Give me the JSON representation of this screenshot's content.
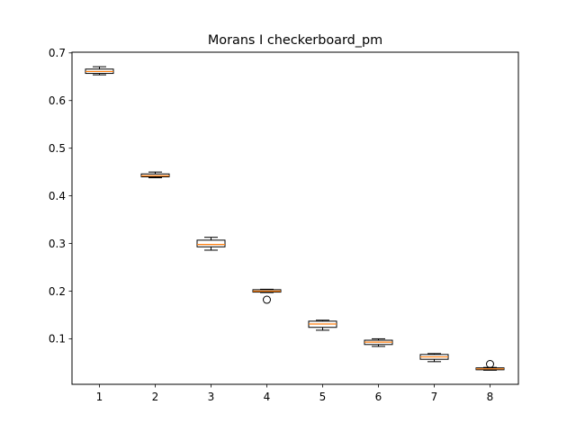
{
  "chart_data": {
    "type": "box",
    "title": "Morans I checkerboard_pm",
    "xlabel": "",
    "ylabel": "",
    "categories": [
      "1",
      "2",
      "3",
      "4",
      "5",
      "6",
      "7",
      "8"
    ],
    "ylim": [
      0.0,
      0.7
    ],
    "yticks": [
      0.1,
      0.2,
      0.3,
      0.4,
      0.5,
      0.6,
      0.7
    ],
    "ytick_labels": [
      "0.1",
      "0.2",
      "0.3",
      "0.4",
      "0.5",
      "0.6",
      "0.7"
    ],
    "grid": false,
    "boxes": [
      {
        "label": "1",
        "whislo": 0.654,
        "q1": 0.657,
        "med": 0.661,
        "q3": 0.666,
        "whishi": 0.671,
        "fliers": []
      },
      {
        "label": "2",
        "whislo": 0.438,
        "q1": 0.44,
        "med": 0.442,
        "q3": 0.446,
        "whishi": 0.45,
        "fliers": []
      },
      {
        "label": "3",
        "whislo": 0.286,
        "q1": 0.293,
        "med": 0.298,
        "q3": 0.307,
        "whishi": 0.313,
        "fliers": []
      },
      {
        "label": "4",
        "whislo": 0.197,
        "q1": 0.198,
        "med": 0.2,
        "q3": 0.203,
        "whishi": 0.204,
        "fliers": [
          0.182
        ]
      },
      {
        "label": "5",
        "whislo": 0.118,
        "q1": 0.124,
        "med": 0.131,
        "q3": 0.137,
        "whishi": 0.139,
        "fliers": []
      },
      {
        "label": "6",
        "whislo": 0.084,
        "q1": 0.088,
        "med": 0.093,
        "q3": 0.097,
        "whishi": 0.1,
        "fliers": []
      },
      {
        "label": "7",
        "whislo": 0.052,
        "q1": 0.057,
        "med": 0.062,
        "q3": 0.067,
        "whishi": 0.069,
        "fliers": []
      },
      {
        "label": "8",
        "whislo": 0.034,
        "q1": 0.035,
        "med": 0.037,
        "q3": 0.039,
        "whishi": 0.04,
        "fliers": [
          0.047
        ]
      }
    ],
    "colors": {
      "box": "#000000",
      "median": "#ff7f0e",
      "background": "#ffffff"
    }
  }
}
